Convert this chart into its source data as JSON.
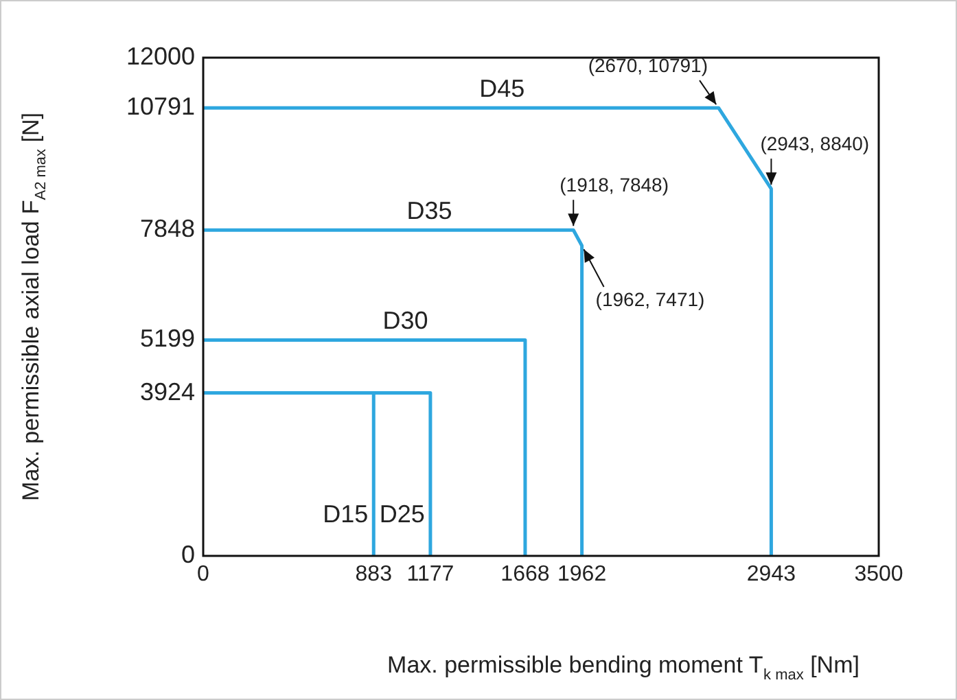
{
  "chart_data": {
    "type": "line",
    "xlabel": "Max. permissible bending moment T$_{k max}$ [Nm]",
    "ylabel": "Max. permissible axial load F$_{A2 max}$ [N]",
    "xlim": [
      0,
      3500
    ],
    "xticks": [
      0,
      883,
      1177,
      1668,
      1962,
      2943,
      3500
    ],
    "ylim": [
      0,
      12000
    ],
    "yticks": [
      0,
      3924,
      5199,
      7848,
      10791,
      12000
    ],
    "grid": false,
    "legend": false,
    "marker": "none",
    "line_style": "solid",
    "series": [
      {
        "name": "D15",
        "color": "#2ea7df",
        "x": [
          0,
          883,
          883
        ],
        "values": [
          3924,
          3924,
          0
        ]
      },
      {
        "name": "D25",
        "color": "#2ea7df",
        "x": [
          0,
          1177,
          1177
        ],
        "values": [
          3924,
          3924,
          0
        ]
      },
      {
        "name": "D30",
        "color": "#2ea7df",
        "x": [
          0,
          1668,
          1668
        ],
        "values": [
          5199,
          5199,
          0
        ]
      },
      {
        "name": "D35",
        "color": "#2ea7df",
        "x": [
          0,
          1918,
          1962,
          1962
        ],
        "values": [
          7848,
          7848,
          7471,
          0
        ]
      },
      {
        "name": "D45",
        "color": "#2ea7df",
        "x": [
          0,
          2670,
          2943,
          2943
        ],
        "values": [
          10791,
          10791,
          8840,
          0
        ]
      }
    ],
    "annotations": [
      {
        "text": "(2670, 10791)",
        "x": 2670,
        "y": 10791
      },
      {
        "text": "(2943, 8840)",
        "x": 2943,
        "y": 8840
      },
      {
        "text": "(1918, 7848)",
        "x": 1918,
        "y": 7848
      },
      {
        "text": "(1962, 7471)",
        "x": 1962,
        "y": 7471
      }
    ]
  }
}
